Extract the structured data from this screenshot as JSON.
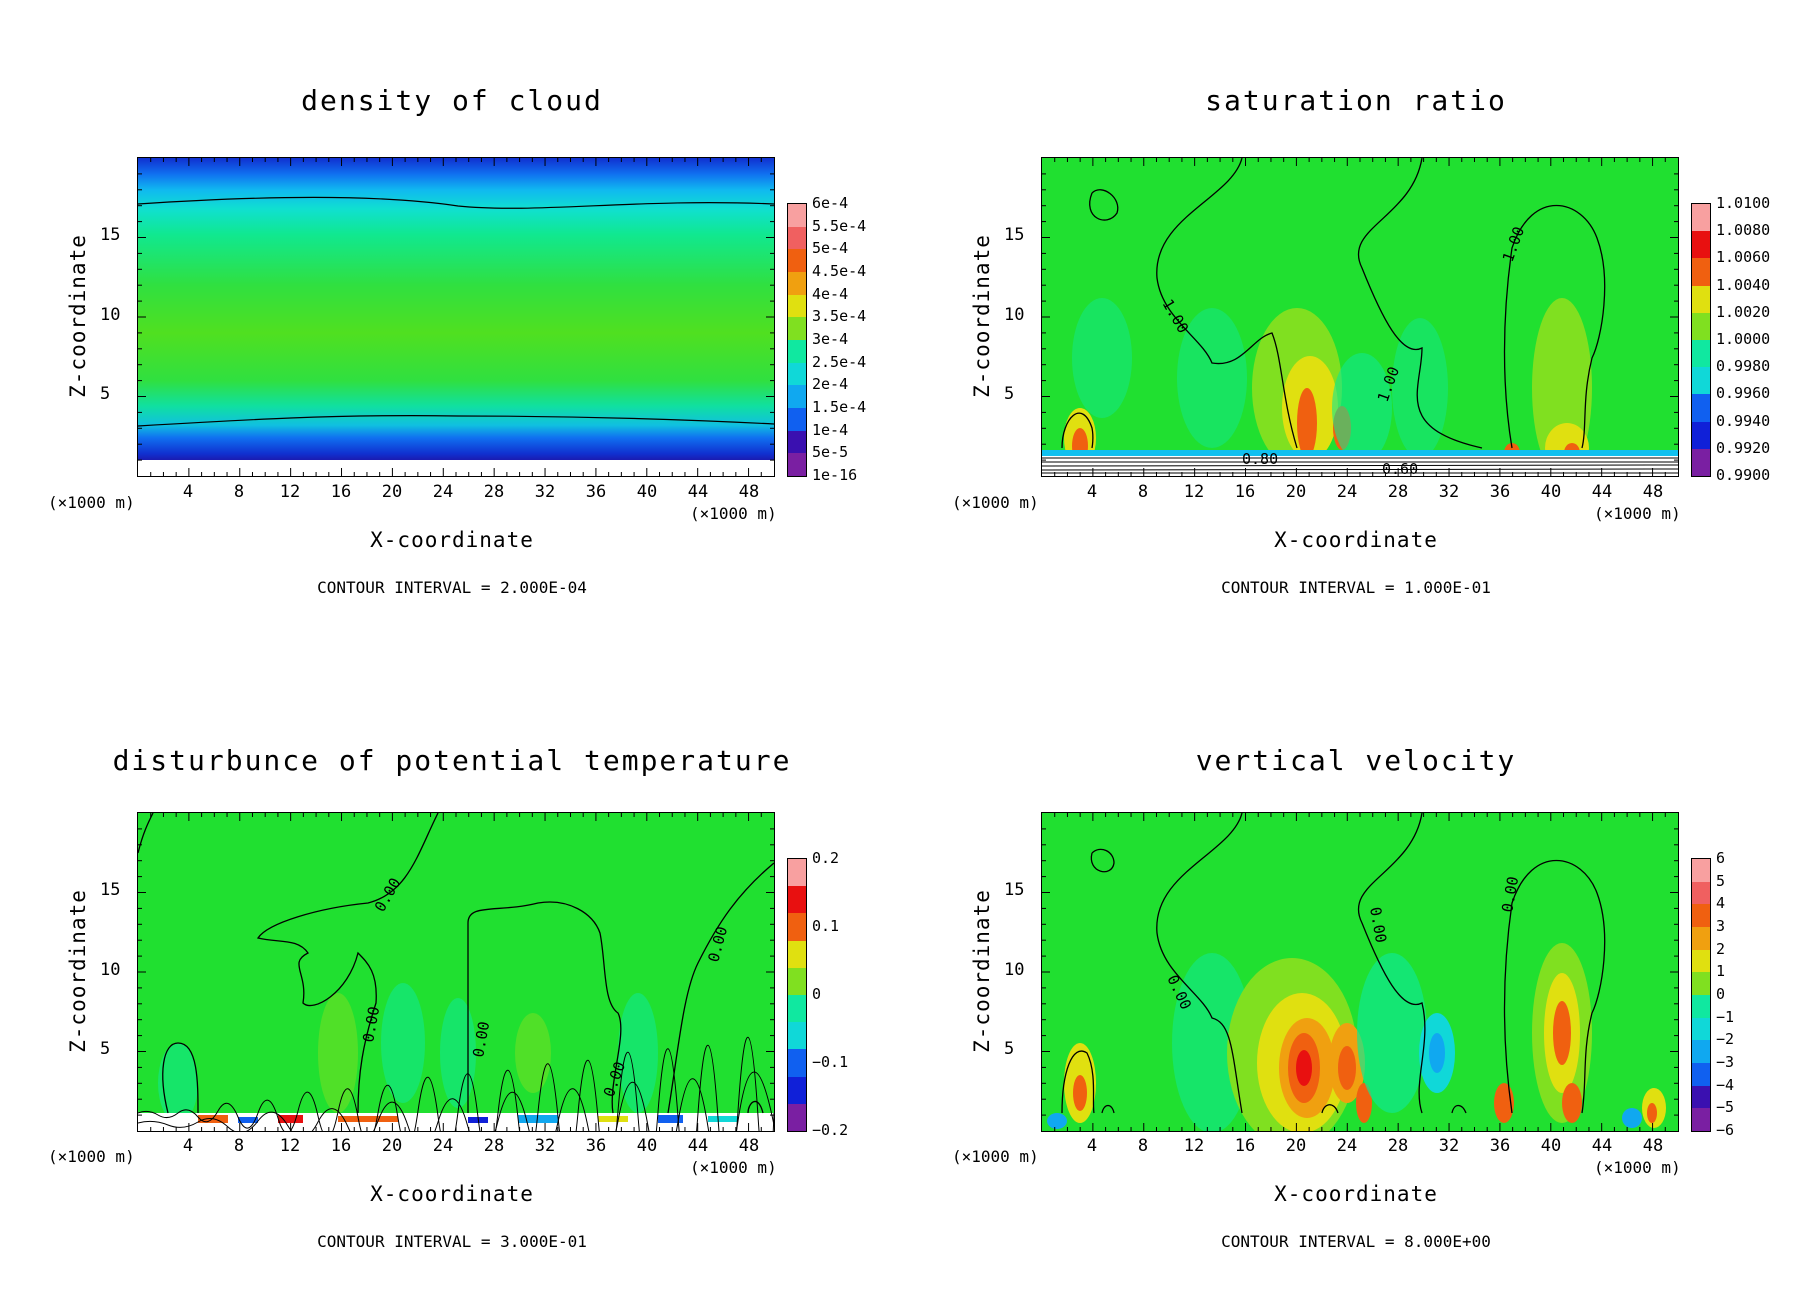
{
  "x_unit_left": "(×1000 m)",
  "x_unit_right": "(×1000 m)",
  "colors": {
    "scale": [
      "#7a1fa2",
      "#3a10b0",
      "#1020d8",
      "#1060f0",
      "#10a8f0",
      "#10d8d8",
      "#10e8a0",
      "#20e030",
      "#80e020",
      "#e0e010",
      "#f0a010",
      "#f06010",
      "#e81010",
      "#f06060",
      "#f8a0a0"
    ]
  },
  "chart_data": [
    {
      "type": "heatmap",
      "title": "density of cloud",
      "xlabel": "X-coordinate",
      "ylabel": "Z-coordinate",
      "xticks": [
        "4",
        "8",
        "12",
        "16",
        "20",
        "24",
        "28",
        "32",
        "36",
        "40",
        "44",
        "48"
      ],
      "yticks": [
        "5",
        "10",
        "15"
      ],
      "xlim": [
        0,
        50
      ],
      "ylim": [
        0,
        20
      ],
      "colorbar": [
        "6e-4",
        "5.5e-4",
        "5e-4",
        "4.5e-4",
        "4e-4",
        "3.5e-4",
        "3e-4",
        "2.5e-4",
        "2e-4",
        "1.5e-4",
        "1e-4",
        "5e-5",
        "1e-16"
      ],
      "contour_interval": "CONTOUR INTERVAL = 2.000E-04",
      "contour_labels": []
    },
    {
      "type": "heatmap",
      "title": "saturation ratio",
      "xlabel": "X-coordinate",
      "ylabel": "Z-coordinate",
      "xticks": [
        "4",
        "8",
        "12",
        "16",
        "20",
        "24",
        "28",
        "32",
        "36",
        "40",
        "44",
        "48"
      ],
      "yticks": [
        "5",
        "10",
        "15"
      ],
      "xlim": [
        0,
        50
      ],
      "ylim": [
        0,
        20
      ],
      "colorbar": [
        "1.0100",
        "1.0080",
        "1.0060",
        "1.0040",
        "1.0020",
        "1.0000",
        "0.9980",
        "0.9960",
        "0.9940",
        "0.9920",
        "0.9900"
      ],
      "contour_interval": "CONTOUR INTERVAL = 1.000E-01",
      "contour_labels": [
        "1.00",
        "1.00",
        "1.00",
        "0.80",
        "0.60"
      ]
    },
    {
      "type": "heatmap",
      "title": "disturbunce of potential temperature",
      "xlabel": "X-coordinate",
      "ylabel": "Z-coordinate",
      "xticks": [
        "4",
        "8",
        "12",
        "16",
        "20",
        "24",
        "28",
        "32",
        "36",
        "40",
        "44",
        "48"
      ],
      "yticks": [
        "5",
        "10",
        "15"
      ],
      "xlim": [
        0,
        50
      ],
      "ylim": [
        0,
        20
      ],
      "colorbar": [
        "0.2",
        "0.1",
        "0",
        "−0.1",
        "−0.2"
      ],
      "contour_interval": "CONTOUR INTERVAL = 3.000E-01",
      "contour_labels": [
        "0.00",
        "0.00",
        "0.00",
        "0.00",
        "0.00"
      ]
    },
    {
      "type": "heatmap",
      "title": "vertical velocity",
      "xlabel": "X-coordinate",
      "ylabel": "Z-coordinate",
      "xticks": [
        "4",
        "8",
        "12",
        "16",
        "20",
        "24",
        "28",
        "32",
        "36",
        "40",
        "44",
        "48"
      ],
      "yticks": [
        "5",
        "10",
        "15"
      ],
      "xlim": [
        0,
        50
      ],
      "ylim": [
        0,
        20
      ],
      "colorbar": [
        "6",
        "5",
        "4",
        "3",
        "2",
        "1",
        "0",
        "−1",
        "−2",
        "−3",
        "−4",
        "−5",
        "−6"
      ],
      "contour_interval": "CONTOUR INTERVAL = 8.000E+00",
      "contour_labels": [
        "0.00",
        "0.00",
        "0.00"
      ]
    }
  ]
}
